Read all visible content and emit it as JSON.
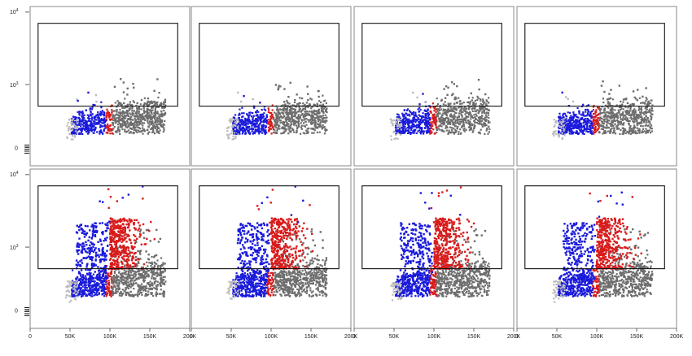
{
  "chart_data": {
    "type": "scatter",
    "layout": {
      "rows": 2,
      "cols": 4
    },
    "x_axis": {
      "range": [
        0,
        200000
      ],
      "ticks": [
        0,
        50000,
        100000,
        150000,
        200000
      ],
      "tick_labels": [
        "0",
        "50K",
        "100K",
        "150K",
        "200K"
      ]
    },
    "y_axis": {
      "scale": "biexponential",
      "tick_labels": [
        {
          "base": "0",
          "exp": ""
        },
        {
          "base": "10",
          "exp": "3"
        },
        {
          "base": "10",
          "exp": "4"
        }
      ]
    },
    "gate": {
      "x_range": [
        10000,
        185000
      ],
      "y_range": [
        300,
        7000
      ]
    },
    "colors": {
      "low": "#1a1adb",
      "mid": "#d81b1b",
      "high": "#6d6d6d",
      "faint": "#bbbbbb",
      "frame": "#888888",
      "gate": "#111111"
    },
    "panels": [
      {
        "row": 0,
        "col": 0,
        "gate_events_sparse": true
      },
      {
        "row": 0,
        "col": 1,
        "gate_events_sparse": true
      },
      {
        "row": 0,
        "col": 2,
        "gate_events_sparse": true
      },
      {
        "row": 0,
        "col": 3,
        "gate_events_sparse": true
      },
      {
        "row": 1,
        "col": 0,
        "gate_events_sparse": false
      },
      {
        "row": 1,
        "col": 1,
        "gate_events_sparse": false
      },
      {
        "row": 1,
        "col": 2,
        "gate_events_sparse": false
      },
      {
        "row": 1,
        "col": 3,
        "gate_events_sparse": false
      }
    ]
  }
}
